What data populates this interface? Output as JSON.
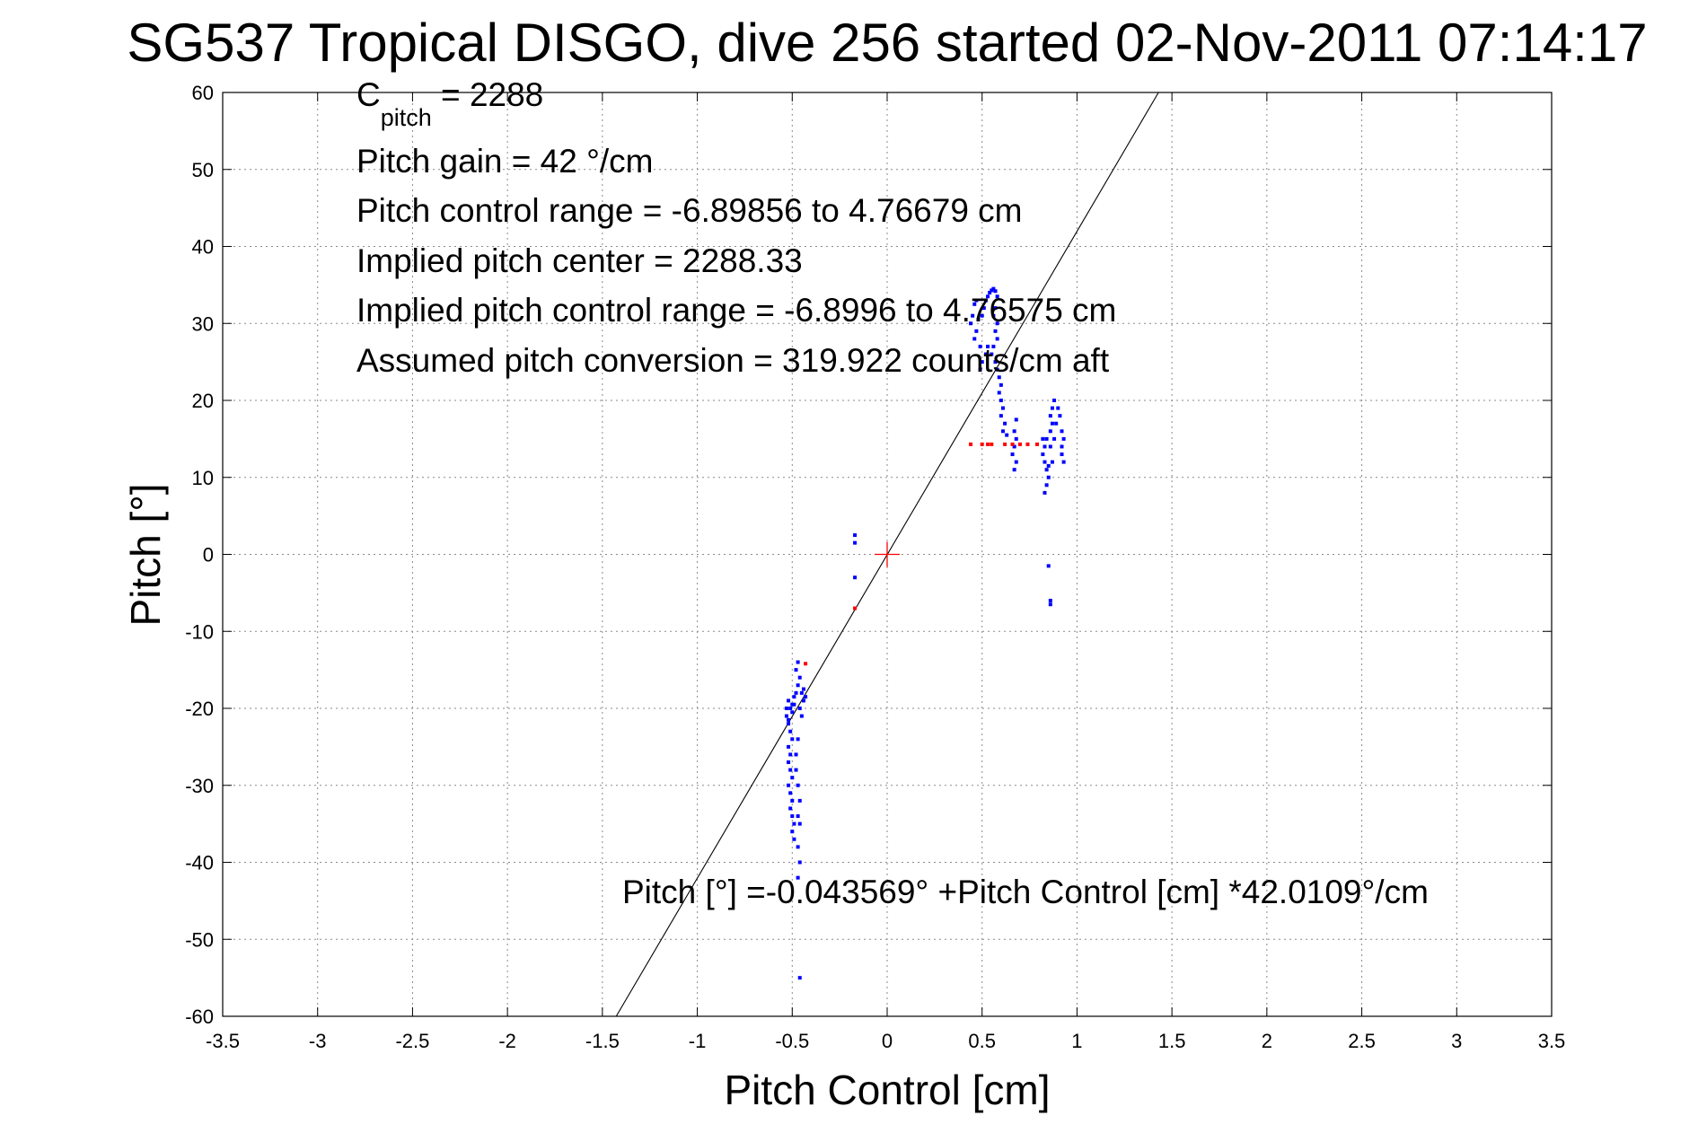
{
  "chart_data": {
    "type": "scatter",
    "title": "SG537 Tropical DISGO, dive 256 started 02-Nov-2011 07:14:17",
    "xlabel": "Pitch Control [cm]",
    "ylabel": "Pitch [°]",
    "xlim": [
      -3.5,
      3.5
    ],
    "ylim": [
      -60,
      60
    ],
    "xticks": [
      -3.5,
      -3,
      -2.5,
      -2,
      -1.5,
      -1,
      -0.5,
      0,
      0.5,
      1,
      1.5,
      2,
      2.5,
      3,
      3.5
    ],
    "yticks": [
      -60,
      -50,
      -40,
      -30,
      -20,
      -10,
      0,
      10,
      20,
      30,
      40,
      50,
      60
    ],
    "xtick_labels": [
      "-3.5",
      "-3",
      "-2.5",
      "-2",
      "-1.5",
      "-1",
      "-0.5",
      "0",
      "0.5",
      "1",
      "1.5",
      "2",
      "2.5",
      "3",
      "3.5"
    ],
    "ytick_labels": [
      "-60",
      "-50",
      "-40",
      "-30",
      "-20",
      "-10",
      "0",
      "10",
      "20",
      "30",
      "40",
      "50",
      "60"
    ],
    "grid": true,
    "annotations": {
      "c_pitch_main": "C",
      "c_pitch_sub": "pitch",
      "c_pitch_value": " = 2288",
      "lines": [
        "Pitch gain = 42 °/cm",
        "Pitch control range = -6.89856 to 4.76679 cm",
        "Implied pitch center = 2288.33",
        "Implied pitch control range = -6.8996 to 4.76575 cm",
        "Assumed pitch conversion = 319.922 counts/cm aft"
      ],
      "fit": "Pitch [°] =-0.043569° +Pitch Control [cm] *42.0109°/cm"
    },
    "fit_line": {
      "intercept": -0.043569,
      "slope": 42.0109
    },
    "center_marker": {
      "x": 0,
      "y": 0
    },
    "series": [
      {
        "color": "#0000ff",
        "points": [
          [
            -0.52,
            -19
          ],
          [
            -0.51,
            -20
          ],
          [
            -0.53,
            -21
          ],
          [
            -0.52,
            -22
          ],
          [
            -0.5,
            -20.5
          ],
          [
            -0.49,
            -19.5
          ],
          [
            -0.48,
            -18
          ],
          [
            -0.47,
            -17
          ],
          [
            -0.46,
            -16
          ],
          [
            -0.48,
            -15
          ],
          [
            -0.47,
            -14
          ],
          [
            -0.45,
            -18
          ],
          [
            -0.44,
            -19
          ],
          [
            -0.46,
            -20
          ],
          [
            -0.45,
            -21
          ],
          [
            -0.44,
            -17.5
          ],
          [
            -0.43,
            -18.5
          ],
          [
            -0.5,
            -19.5
          ],
          [
            -0.49,
            -18.5
          ],
          [
            -0.53,
            -20
          ],
          [
            -0.52,
            -21.5
          ],
          [
            -0.51,
            -23
          ],
          [
            -0.5,
            -24
          ],
          [
            -0.52,
            -25
          ],
          [
            -0.51,
            -26
          ],
          [
            -0.52,
            -27
          ],
          [
            -0.51,
            -28
          ],
          [
            -0.5,
            -29
          ],
          [
            -0.52,
            -30
          ],
          [
            -0.51,
            -31
          ],
          [
            -0.5,
            -32
          ],
          [
            -0.51,
            -33
          ],
          [
            -0.5,
            -34
          ],
          [
            -0.49,
            -35
          ],
          [
            -0.5,
            -36
          ],
          [
            -0.49,
            -37
          ],
          [
            -0.48,
            -28
          ],
          [
            -0.47,
            -30
          ],
          [
            -0.46,
            -32
          ],
          [
            -0.47,
            -34
          ],
          [
            -0.46,
            -35
          ],
          [
            -0.47,
            -38
          ],
          [
            -0.46,
            -40
          ],
          [
            -0.47,
            -42
          ],
          [
            -0.46,
            -55
          ],
          [
            -0.48,
            -26
          ],
          [
            -0.47,
            -24
          ],
          [
            -0.17,
            2.5
          ],
          [
            -0.17,
            1.5
          ],
          [
            -0.17,
            -3
          ],
          [
            0.44,
            30
          ],
          [
            0.45,
            31
          ],
          [
            0.46,
            28
          ],
          [
            0.47,
            29
          ],
          [
            0.48,
            30.5
          ],
          [
            0.49,
            27
          ],
          [
            0.5,
            31
          ],
          [
            0.51,
            32
          ],
          [
            0.52,
            33
          ],
          [
            0.53,
            33.5
          ],
          [
            0.54,
            34
          ],
          [
            0.55,
            34.3
          ],
          [
            0.56,
            34.5
          ],
          [
            0.57,
            34.2
          ],
          [
            0.58,
            33.5
          ],
          [
            0.57,
            32
          ],
          [
            0.56,
            31
          ],
          [
            0.58,
            30
          ],
          [
            0.57,
            29
          ],
          [
            0.58,
            28
          ],
          [
            0.56,
            27
          ],
          [
            0.55,
            26
          ],
          [
            0.57,
            25
          ],
          [
            0.58,
            24
          ],
          [
            0.59,
            23
          ],
          [
            0.6,
            22
          ],
          [
            0.59,
            21
          ],
          [
            0.6,
            20
          ],
          [
            0.61,
            19
          ],
          [
            0.6,
            18
          ],
          [
            0.62,
            17
          ],
          [
            0.61,
            16
          ],
          [
            0.63,
            15.5
          ],
          [
            0.52,
            26
          ],
          [
            0.5,
            25
          ],
          [
            0.49,
            24
          ],
          [
            0.53,
            27
          ],
          [
            0.47,
            33
          ],
          [
            0.46,
            32.5
          ],
          [
            0.66,
            13
          ],
          [
            0.67,
            14
          ],
          [
            0.68,
            15
          ],
          [
            0.67,
            16
          ],
          [
            0.68,
            12
          ],
          [
            0.67,
            11
          ],
          [
            0.68,
            17.5
          ],
          [
            0.82,
            13
          ],
          [
            0.83,
            14
          ],
          [
            0.84,
            15
          ],
          [
            0.83,
            12
          ],
          [
            0.84,
            11
          ],
          [
            0.85,
            10
          ],
          [
            0.84,
            9
          ],
          [
            0.83,
            8
          ],
          [
            0.86,
            16
          ],
          [
            0.87,
            17
          ],
          [
            0.86,
            18
          ],
          [
            0.87,
            19
          ],
          [
            0.88,
            20
          ],
          [
            0.86,
            14
          ],
          [
            0.87,
            12
          ],
          [
            0.85,
            -1.5
          ],
          [
            0.86,
            -6
          ],
          [
            0.86,
            -6.5
          ],
          [
            0.88,
            15
          ],
          [
            0.89,
            17
          ],
          [
            0.9,
            19
          ],
          [
            0.91,
            18
          ],
          [
            0.92,
            14
          ],
          [
            0.92,
            16
          ],
          [
            0.93,
            15
          ],
          [
            0.92,
            13
          ],
          [
            0.93,
            12
          ],
          [
            0.85,
            11.5
          ],
          [
            0.82,
            15
          ]
        ]
      },
      {
        "color": "#ff0000",
        "points": [
          [
            0.44,
            14.3
          ],
          [
            0.5,
            14.3
          ],
          [
            0.53,
            14.3
          ],
          [
            0.55,
            14.3
          ],
          [
            0.62,
            14.3
          ],
          [
            0.66,
            14.3
          ],
          [
            0.7,
            14.3
          ],
          [
            0.74,
            14.3
          ],
          [
            0.79,
            14.3
          ],
          [
            -0.17,
            -7
          ],
          [
            -0.43,
            -14.2
          ]
        ]
      }
    ]
  }
}
